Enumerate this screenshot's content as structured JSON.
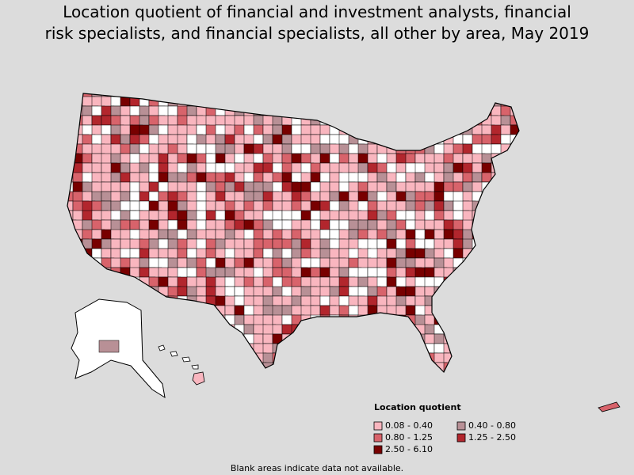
{
  "title": [
    "Location quotient of financial and investment analysts, financial",
    "risk specialists, and financial specialists, all other by area, May 2019"
  ],
  "legend": {
    "title": "Location quotient",
    "items": [
      {
        "label": "0.08 - 0.40",
        "color": "#f9b6bf"
      },
      {
        "label": "0.40 - 0.80",
        "color": "#b89096"
      },
      {
        "label": "0.80 - 1.25",
        "color": "#d8636b"
      },
      {
        "label": "1.25 - 2.50",
        "color": "#b2262d"
      },
      {
        "label": "2.50 - 6.10",
        "color": "#780000"
      }
    ]
  },
  "note": "Blank areas indicate data not available."
}
